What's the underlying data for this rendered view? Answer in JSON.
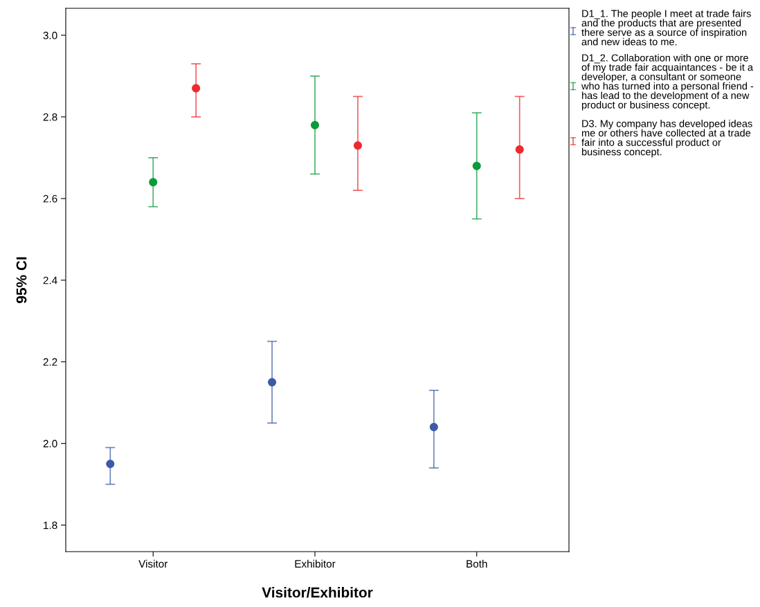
{
  "chart_data": {
    "type": "scatter",
    "xlabel": "Visitor/Exhibitor",
    "ylabel": "95% CI",
    "categories": [
      "Visitor",
      "Exhibitor",
      "Both"
    ],
    "ylim": [
      1.735,
      3.066
    ],
    "yticks": [
      {
        "value": 1.8,
        "label": "1.8"
      },
      {
        "value": 2.0,
        "label": "2.0"
      },
      {
        "value": 2.2,
        "label": "2.2"
      },
      {
        "value": 2.4,
        "label": "2.4"
      },
      {
        "value": 2.6,
        "label": "2.6"
      },
      {
        "value": 2.8,
        "label": "2.8"
      },
      {
        "value": 3.0,
        "label": "3.0"
      }
    ],
    "grid": false,
    "legend": "right",
    "marker": "circle",
    "series": [
      {
        "name": "D1_1. The people I meet at trade fairs and the products that are presented there serve as a source of inspiration and new ideas to me.",
        "color": "#3d5aa8",
        "values": [
          1.95,
          2.15,
          2.04
        ],
        "errors": [
          [
            1.9,
            1.99
          ],
          [
            2.05,
            2.25
          ],
          [
            1.94,
            2.13
          ]
        ]
      },
      {
        "name": "D1_2. Collaboration with one or more of my trade fair acquaintances - be it a developer, a consultant or someone who has turned into a personal friend - has lead to the development of a new product or business concept.",
        "color": "#0d9a3c",
        "values": [
          2.64,
          2.78,
          2.68
        ],
        "errors": [
          [
            2.58,
            2.7
          ],
          [
            2.66,
            2.9
          ],
          [
            2.55,
            2.81
          ]
        ]
      },
      {
        "name": "D3. My company has developed ideas me or others have collected at a trade fair into a successful product or business concept.",
        "color": "#ec2a2f",
        "values": [
          2.87,
          2.73,
          2.72
        ],
        "errors": [
          [
            2.8,
            2.93
          ],
          [
            2.62,
            2.85
          ],
          [
            2.6,
            2.85
          ]
        ]
      }
    ]
  }
}
